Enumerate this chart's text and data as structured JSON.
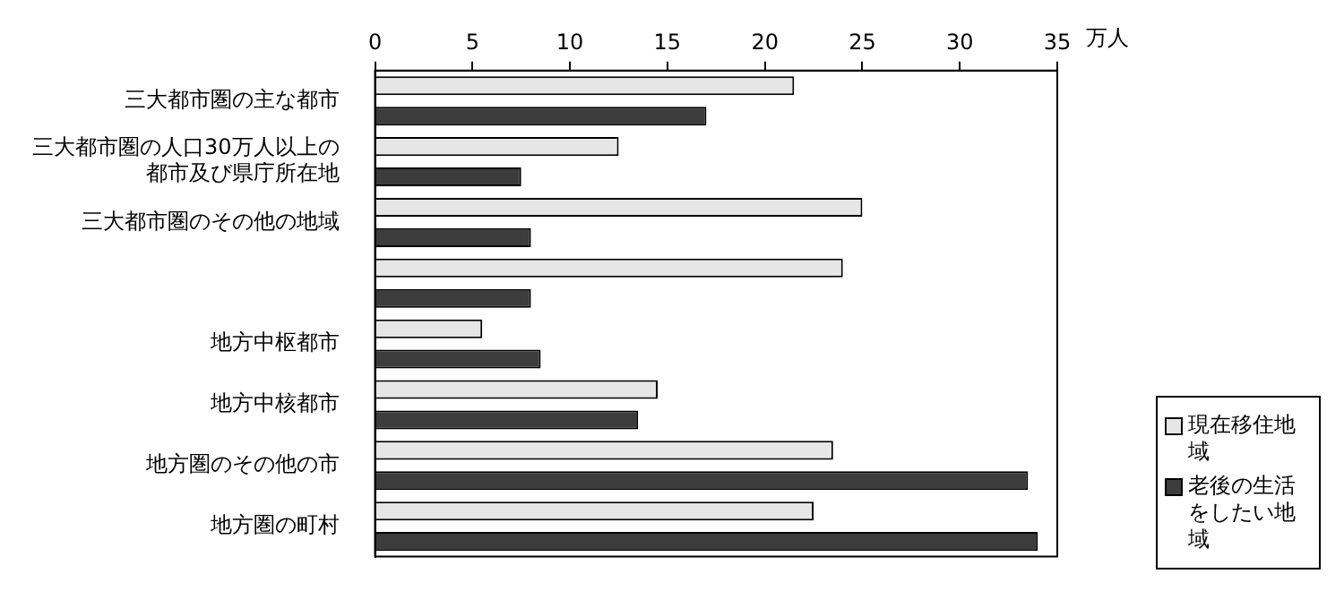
{
  "chart_data": {
    "type": "bar",
    "orientation": "horizontal",
    "xlabel": "万人",
    "categories": [
      "三大都市圏の主な都市",
      "三大都市圏の人口30万人以上の都市及び県庁所在地",
      "三大都市圏のその他の地域",
      null,
      "地方中枢都市",
      "地方中核都市",
      "地方圏のその他の市",
      "地方圏の町村"
    ],
    "series": [
      {
        "name": "現在移住地域",
        "color": "#e6e6e6",
        "values": [
          21.5,
          12.5,
          25.0,
          24.0,
          5.5,
          14.5,
          23.5,
          22.5
        ]
      },
      {
        "name": "老後の生活をしたい地域",
        "color": "#3c3c3c",
        "values": [
          17.0,
          7.5,
          8.0,
          8.0,
          8.5,
          13.5,
          33.5,
          34.0
        ]
      }
    ],
    "xlim": [
      0,
      35
    ],
    "xticks": [
      0,
      5,
      10,
      15,
      20,
      25,
      30,
      35
    ],
    "grid": false,
    "legend": "bottom right"
  }
}
